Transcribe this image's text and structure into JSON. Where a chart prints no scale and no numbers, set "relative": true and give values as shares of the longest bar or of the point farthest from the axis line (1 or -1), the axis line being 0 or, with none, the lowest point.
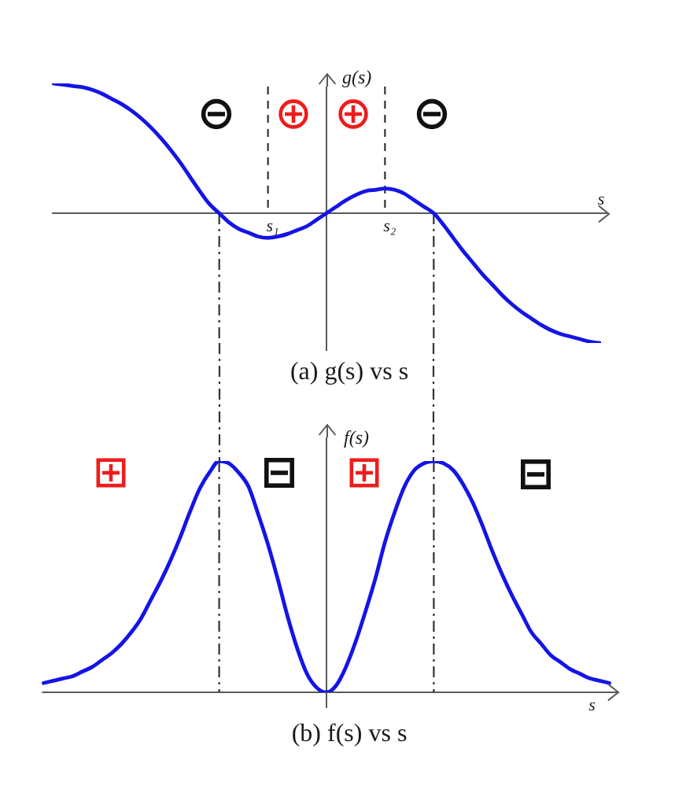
{
  "chart_data": [
    {
      "type": "line",
      "title": "(a) g(s) vs s",
      "xlabel": "s",
      "ylabel": "g(s)",
      "relative": true,
      "annotations": [
        "s₁",
        "s₂"
      ],
      "categories": [
        null,
        null,
        null,
        null,
        null,
        null,
        null,
        null,
        null,
        null,
        null,
        null,
        null,
        null,
        null,
        null,
        null,
        null,
        null,
        null,
        null,
        null,
        null,
        null,
        null,
        null,
        null,
        null,
        null,
        null,
        null,
        null,
        null,
        null,
        null,
        null,
        null,
        null,
        null,
        null,
        null,
        null,
        null,
        null,
        null,
        null,
        null,
        null,
        null,
        null,
        null,
        null,
        null,
        null,
        null,
        null,
        null
      ],
      "series": [
        {
          "color": "#1414e6",
          "values": [
            1,
            0.99,
            0.98,
            0.97,
            0.95,
            0.92,
            0.88,
            0.84,
            0.79,
            0.73,
            0.66,
            0.58,
            0.49,
            0.39,
            0.28,
            0.17,
            0.07,
            0,
            -0.07,
            -0.12,
            -0.15,
            -0.18,
            -0.19,
            -0.18,
            -0.16,
            -0.13,
            -0.1,
            -0.05,
            0,
            0.05,
            0.1,
            0.14,
            0.17,
            0.18,
            0.19,
            0.18,
            0.15,
            0.1,
            0.05,
            0,
            -0.09,
            -0.19,
            -0.29,
            -0.38,
            -0.47,
            -0.55,
            -0.63,
            -0.7,
            -0.76,
            -0.81,
            -0.86,
            -0.9,
            -0.93,
            -0.95,
            -0.97,
            -0.99,
            -1
          ]
        }
      ]
    },
    {
      "type": "line",
      "title": "(b) f(s) vs s",
      "xlabel": "s",
      "ylabel": "f(s)",
      "relative": true,
      "categories": [
        null,
        null,
        null,
        null,
        null,
        null,
        null,
        null,
        null,
        null,
        null,
        null,
        null,
        null,
        null,
        null,
        null,
        null,
        null,
        null,
        null,
        null,
        null,
        null,
        null,
        null,
        null,
        null,
        null,
        null,
        null,
        null,
        null,
        null,
        null,
        null,
        null,
        null,
        null,
        null,
        null,
        null,
        null,
        null,
        null,
        null,
        null,
        null,
        null,
        null,
        null,
        null,
        null,
        null,
        null,
        null,
        null,
        null,
        null
      ],
      "series": [
        {
          "color": "#1414e6",
          "values": [
            0.04,
            0.05,
            0.06,
            0.07,
            0.09,
            0.11,
            0.14,
            0.17,
            0.21,
            0.26,
            0.32,
            0.4,
            0.48,
            0.57,
            0.67,
            0.78,
            0.88,
            0.95,
            1,
            0.99,
            0.95,
            0.89,
            0.77,
            0.64,
            0.49,
            0.33,
            0.19,
            0.08,
            0.02,
            0,
            0.03,
            0.11,
            0.22,
            0.35,
            0.49,
            0.65,
            0.78,
            0.89,
            0.96,
            0.99,
            1,
            0.99,
            0.96,
            0.9,
            0.82,
            0.72,
            0.61,
            0.51,
            0.42,
            0.34,
            0.26,
            0.21,
            0.16,
            0.13,
            0.1,
            0.08,
            0.06,
            0.05,
            0.04
          ]
        }
      ]
    }
  ]
}
